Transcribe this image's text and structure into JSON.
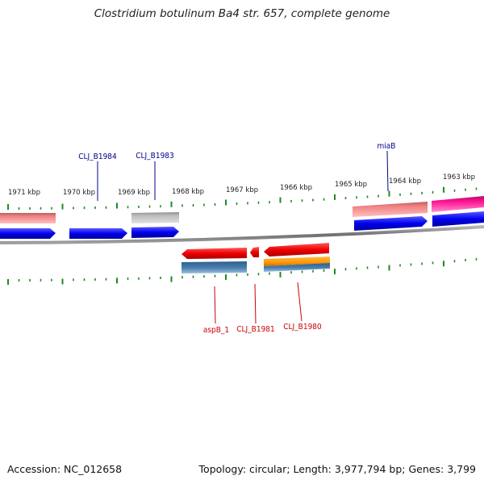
{
  "title": "Clostridium botulinum Ba4 str. 657, complete genome",
  "footer": {
    "accession_label": "Accession:",
    "accession": "NC_012658",
    "topology_label": "Topology:",
    "topology": "circular",
    "length_label": "Length:",
    "length": "3,977,794 bp",
    "genes_label": "Genes:",
    "genes": "3,799"
  },
  "scale_labels": [
    "1971 kbp",
    "1970 kbp",
    "1969 kbp",
    "1968 kbp",
    "1967 kbp",
    "1966 kbp",
    "1965 kbp",
    "1964 kbp",
    "1963 kbp"
  ],
  "gene_labels_top": [
    "CLJ_B1984",
    "CLJ_B1983",
    "miaB"
  ],
  "gene_labels_bottom": [
    "aspB_1",
    "CLJ_B1981",
    "CLJ_B1980"
  ],
  "colors": {
    "backbone": "#8a8a8a",
    "tick": "#1f8a1f",
    "cds_forward": "#0000ee",
    "cds_reverse": "#ee0000",
    "label_forward": "#00008b",
    "label_reverse": "#cc0000",
    "salmon_feature": "#f08080",
    "gray_feature": "#b9b9b9",
    "steelblue_feature": "#4a7fb0",
    "orange_feature": "#ff9900",
    "pink_feature": "#ff1493"
  }
}
